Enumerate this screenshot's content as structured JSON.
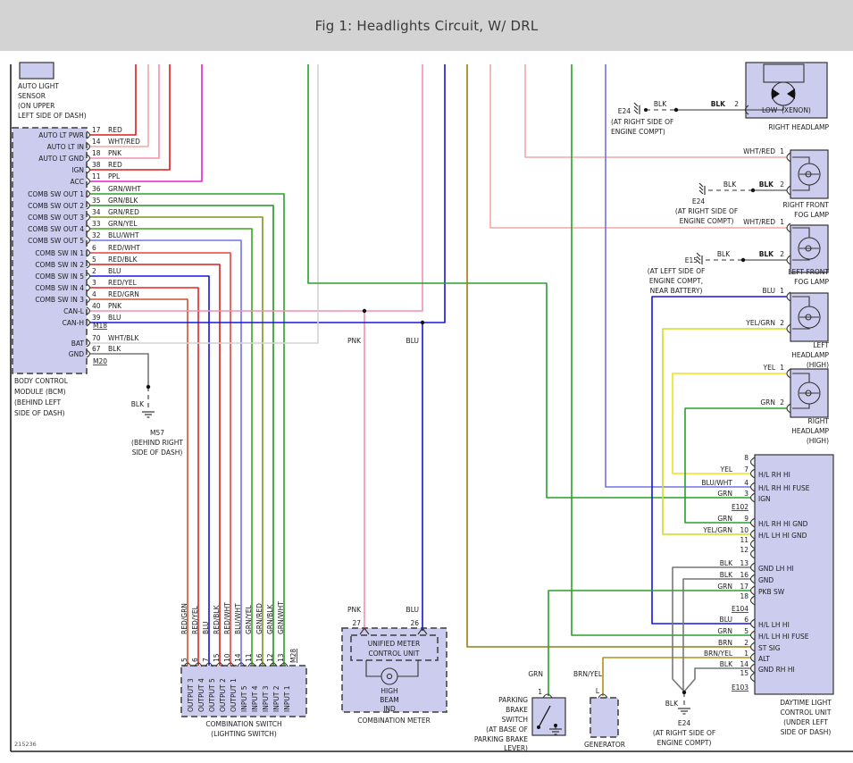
{
  "title": "Fig 1: Headlights Circuit, W/ DRL",
  "figure_number": "215236",
  "colors": {
    "header_bg": "#d3d3d3",
    "component_fill": "#ccccee",
    "text": "#1c1c1c",
    "border": "#222222"
  },
  "palette": {
    "RED": "#e01818",
    "WHT/RED": "#f2a8a8",
    "PNK": "#f48fb1",
    "PPL": "#e620d6",
    "GRN": "#28a228",
    "GRN/WHT": "#28a228",
    "GRN/BLK": "#1e941e",
    "GRN/RED": "#77971f",
    "GRN/YEL": "#3aa51e",
    "BLU": "#1616dd",
    "BLU/WHT": "#7272e8",
    "RED/WHT": "#ea4040",
    "RED/BLK": "#dd1a1a",
    "RED/YEL": "#e62424",
    "RED/GRN": "#d2522c",
    "WHT/BLK": "#d2d2d2",
    "BLK": "#777777",
    "YEL": "#ece41a",
    "YEL/GRN": "#cede1a",
    "BRN": "#9a7b14",
    "BRN/YEL": "#b3901d"
  },
  "auto_light_sensor": {
    "caption": [
      "AUTO LIGHT",
      "SENSOR",
      "(ON UPPER",
      "LEFT SIDE OF DASH)"
    ]
  },
  "bcm": {
    "pins": [
      {
        "name": "AUTO LT PWR",
        "num": "17",
        "color": "RED"
      },
      {
        "name": "AUTO LT IN",
        "num": "14",
        "color": "WHT/RED"
      },
      {
        "name": "AUTO LT GND",
        "num": "18",
        "color": "PNK"
      },
      {
        "name": "IGN",
        "num": "38",
        "color": "RED"
      },
      {
        "name": "ACC",
        "num": "11",
        "color": "PPL"
      },
      {
        "name": "COMB SW OUT 1",
        "num": "36",
        "color": "GRN/WHT"
      },
      {
        "name": "COMB SW OUT 2",
        "num": "35",
        "color": "GRN/BLK"
      },
      {
        "name": "COMB SW OUT 3",
        "num": "34",
        "color": "GRN/RED"
      },
      {
        "name": "COMB SW OUT 4",
        "num": "33",
        "color": "GRN/YEL"
      },
      {
        "name": "COMB SW OUT 5",
        "num": "32",
        "color": "BLU/WHT"
      },
      {
        "name": "COMB SW IN 1",
        "num": "6",
        "color": "RED/WHT"
      },
      {
        "name": "COMB SW IN 2",
        "num": "5",
        "color": "RED/BLK"
      },
      {
        "name": "COMB SW IN 5",
        "num": "2",
        "color": "BLU"
      },
      {
        "name": "COMB SW IN 4",
        "num": "3",
        "color": "RED/YEL"
      },
      {
        "name": "COMB SW IN 3",
        "num": "4",
        "color": "RED/GRN"
      },
      {
        "name": "CAN-L",
        "num": "40",
        "color": "PNK"
      },
      {
        "name": "CAN-H",
        "num": "39",
        "color": "BLU"
      },
      {
        "name": "BAT",
        "num": "70",
        "color": "WHT/BLK"
      },
      {
        "name": "GND",
        "num": "67",
        "color": "BLK"
      }
    ],
    "m18": "M18",
    "m20": "M20",
    "caption": [
      "BODY CONTROL",
      "MODULE (BCM)",
      "(BEHIND LEFT",
      "SIDE OF DASH)"
    ]
  },
  "m57": {
    "wire": "BLK",
    "name": "M57",
    "caption": [
      "(BEHIND RIGHT",
      "SIDE OF DASH)"
    ]
  },
  "right_headlamp": {
    "low": "LOW",
    "xenon": "(XENON)",
    "blk_mid": "BLK",
    "blk_pin": "BLK",
    "pin": "2",
    "caption": "RIGHT HEADLAMP",
    "e24": {
      "name": "E24",
      "caption": [
        "(AT RIGHT SIDE OF",
        "ENGINE COMPT)"
      ]
    }
  },
  "right_fog": {
    "pin1_color": "WHT/RED",
    "pin1": "1",
    "blk_mid": "BLK",
    "blk_pin": "BLK",
    "pin2": "2",
    "caption": [
      "RIGHT FRONT",
      "FOG LAMP"
    ],
    "e24": {
      "name": "E24",
      "caption": [
        "(AT RIGHT SIDE OF",
        "ENGINE COMPT)"
      ]
    }
  },
  "left_fog": {
    "pin1_color": "WHT/RED",
    "pin1": "1",
    "blk_mid": "BLK",
    "blk_pin": "BLK",
    "pin2": "2",
    "caption": [
      "LEFT FRONT",
      "FOG LAMP"
    ],
    "e15": {
      "name": "E15",
      "caption": [
        "(AT LEFT SIDE OF",
        "ENGINE COMPT,",
        "NEAR BATTERY)"
      ]
    }
  },
  "left_high": {
    "pin1_color": "BLU",
    "pin1": "1",
    "pin2_color": "YEL/GRN",
    "pin2": "2",
    "caption": [
      "LEFT",
      "HEADLAMP",
      "(HIGH)"
    ]
  },
  "right_high": {
    "pin1_color": "YEL",
    "pin1": "1",
    "pin2_color": "GRN",
    "pin2": "2",
    "caption": [
      "RIGHT",
      "HEADLAMP",
      "(HIGH)"
    ]
  },
  "dlcu": {
    "rows": [
      {
        "num": "8"
      },
      {
        "color": "YEL",
        "num": "7",
        "label": "H/L RH HI"
      },
      {
        "color": "BLU/WHT",
        "num": "4",
        "label": "H/L RH HI FUSE"
      },
      {
        "color": "GRN",
        "num": "3",
        "label": "IGN"
      },
      {
        "conn": "E102"
      },
      {
        "color": "GRN",
        "num": "9",
        "label": "H/L RH HI GND"
      },
      {
        "color": "YEL/GRN",
        "num": "10",
        "label": "H/L LH HI GND"
      },
      {
        "num": "11"
      },
      {
        "num": "12"
      },
      {
        "color": "BLK",
        "num": "13",
        "label": "GND LH HI"
      },
      {
        "color": "BLK",
        "num": "16",
        "label": "GND"
      },
      {
        "color": "GRN",
        "num": "17",
        "label": "PKB SW"
      },
      {
        "num": "18"
      },
      {
        "conn": "E104"
      },
      {
        "color": "BLU",
        "num": "6",
        "label": "H/L LH HI"
      },
      {
        "color": "GRN",
        "num": "5",
        "label": "H/L LH HI FUSE"
      },
      {
        "color": "BRN",
        "num": "2",
        "label": "ST SIG"
      },
      {
        "color": "BRN/YEL",
        "num": "1",
        "label": "ALT"
      },
      {
        "color": "BLK",
        "num": "14",
        "label": "GND RH HI"
      },
      {
        "num": "15"
      },
      {
        "conn": "E103"
      }
    ],
    "caption": [
      "DAYTIME LIGHT",
      "CONTROL UNIT",
      "(UNDER LEFT",
      "SIDE OF DASH)"
    ]
  },
  "comb_switch": {
    "wires": [
      {
        "color": "RED/GRN",
        "num": "5",
        "label": "OUTPUT 3"
      },
      {
        "color": "RED/YEL",
        "num": "6",
        "label": "OUTPUT 4"
      },
      {
        "color": "BLU",
        "num": "7",
        "label": "OUTPUT 5"
      },
      {
        "color": "RED/BLK",
        "num": "15",
        "label": "OUTPUT 2"
      },
      {
        "color": "RED/WHT",
        "num": "10",
        "label": "OUTPUT 1"
      },
      {
        "color": "BLU/WHT",
        "num": "14",
        "label": "INPUT 5"
      },
      {
        "color": "GRN/YEL",
        "num": "11",
        "label": "INPUT 4"
      },
      {
        "color": "GRN/RED",
        "num": "16",
        "label": "INPUT 3"
      },
      {
        "color": "GRN/BLK",
        "num": "12",
        "label": "INPUT 2"
      },
      {
        "color": "GRN/WHT",
        "num": "13",
        "label": "INPUT 1"
      }
    ],
    "connector": "M28",
    "caption": [
      "COMBINATION SWITCH",
      "(LIGHTING SWITCH)"
    ]
  },
  "comb_meter": {
    "pnk": "PNK",
    "blu": "BLU",
    "pin27": "27",
    "pin26": "26",
    "unit": [
      "UNIFIED METER",
      "CONTROL UNIT"
    ],
    "ind": [
      "HIGH",
      "BEAM",
      "IND"
    ],
    "caption": "COMBINATION METER"
  },
  "mid_labels": {
    "pnk": "PNK",
    "blu": "BLU"
  },
  "parking_brake": {
    "wire": "GRN",
    "pin": "1",
    "caption": [
      "PARKING",
      "BRAKE",
      "SWITCH",
      "(AT BASE OF",
      "PARKING BRAKE",
      "LEVER)"
    ]
  },
  "generator": {
    "terminal": "L",
    "wire": "BRN/YEL",
    "caption": "GENERATOR"
  },
  "e24_bottom": {
    "wire": "BLK",
    "name": "E24",
    "caption": [
      "(AT RIGHT SIDE OF",
      "ENGINE COMPT)"
    ]
  }
}
